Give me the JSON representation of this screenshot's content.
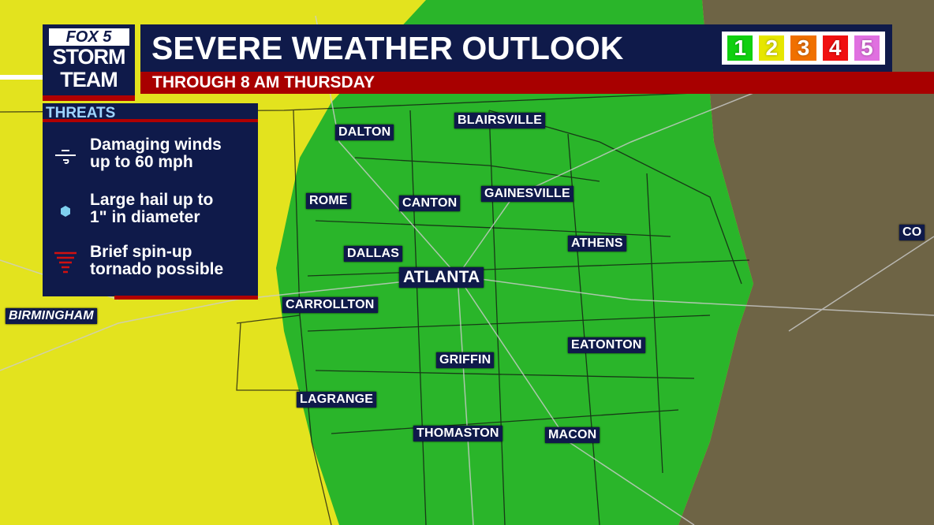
{
  "colors": {
    "marginal_yellow": "#e3e31e",
    "general_green": "#2ab52a",
    "terrain_brown": "#6e6445",
    "navy": "#0f1a4a",
    "red": "#a80000"
  },
  "logo": {
    "line1": "FOX 5",
    "line2": "STORM",
    "line3": "TEAM"
  },
  "header": {
    "title": "SEVERE WEATHER OUTLOOK",
    "subtitle": "THROUGH 8 AM THURSDAY"
  },
  "risk_scale": [
    {
      "label": "1",
      "color": "#10d010"
    },
    {
      "label": "2",
      "color": "#e6e600"
    },
    {
      "label": "3",
      "color": "#f07000"
    },
    {
      "label": "4",
      "color": "#f01010"
    },
    {
      "label": "5",
      "color": "#e070e0"
    }
  ],
  "threats": {
    "heading": "THREATS",
    "items": [
      {
        "icon": "wind-icon",
        "line1": "Damaging winds",
        "line2": "up to 60 mph"
      },
      {
        "icon": "hail-icon",
        "line1": "Large hail up to",
        "line2": "1\" in diameter"
      },
      {
        "icon": "tornado-icon",
        "line1": "Brief spin-up",
        "line2": "tornado possible"
      }
    ]
  },
  "cities": [
    "DALTON",
    "BLAIRSVILLE",
    "ROME",
    "CANTON",
    "GAINESVILLE",
    "ATHENS",
    "DALLAS",
    "ATLANTA",
    "CARROLLTON",
    "BIRMINGHAM",
    "EATONTON",
    "GRIFFIN",
    "LAGRANGE",
    "THOMASTON",
    "MACON",
    "CO"
  ]
}
